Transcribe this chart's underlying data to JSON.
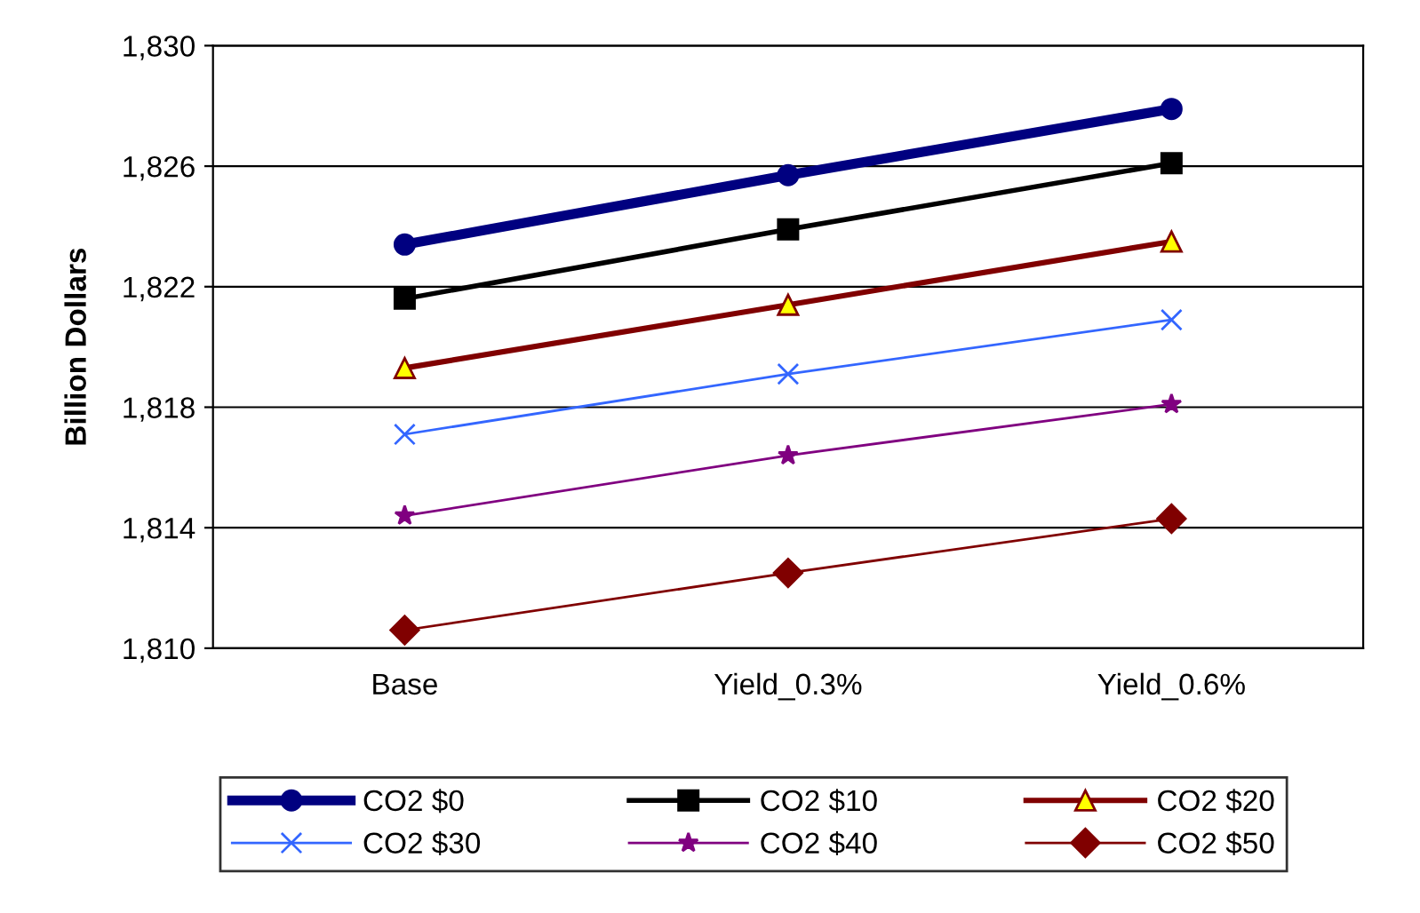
{
  "chart_data": {
    "type": "line",
    "ylabel": "Billion Dollars",
    "categories": [
      "Base",
      "Yield_0.3%",
      "Yield_0.6%"
    ],
    "series": [
      {
        "name": "CO2 $0",
        "color": "#000080",
        "marker": "circle",
        "values": [
          1823.4,
          1825.7,
          1827.9
        ]
      },
      {
        "name": "CO2 $10",
        "color": "#000000",
        "marker": "square",
        "values": [
          1821.6,
          1823.9,
          1826.1
        ]
      },
      {
        "name": "CO2 $20",
        "color": "#800000",
        "marker": "triangle",
        "values": [
          1819.3,
          1821.4,
          1823.5
        ]
      },
      {
        "name": "CO2 $30",
        "color": "#3366ff",
        "marker": "cross",
        "values": [
          1817.1,
          1819.1,
          1820.9
        ]
      },
      {
        "name": "CO2 $40",
        "color": "#800080",
        "marker": "star",
        "values": [
          1814.4,
          1816.4,
          1818.1
        ]
      },
      {
        "name": "CO2 $50",
        "color": "#800000",
        "marker": "diamond",
        "values": [
          1810.6,
          1812.5,
          1814.3
        ]
      }
    ],
    "ylim": [
      1810,
      1830
    ],
    "yticks": [
      {
        "value": 1810,
        "label": "1,810"
      },
      {
        "value": 1814,
        "label": "1,814"
      },
      {
        "value": 1818,
        "label": "1,818"
      },
      {
        "value": 1822,
        "label": "1,822"
      },
      {
        "value": 1826,
        "label": "1,826"
      },
      {
        "value": 1830,
        "label": "1,830"
      }
    ],
    "grid": "y",
    "legend": "bottom",
    "line_style": "solid"
  }
}
